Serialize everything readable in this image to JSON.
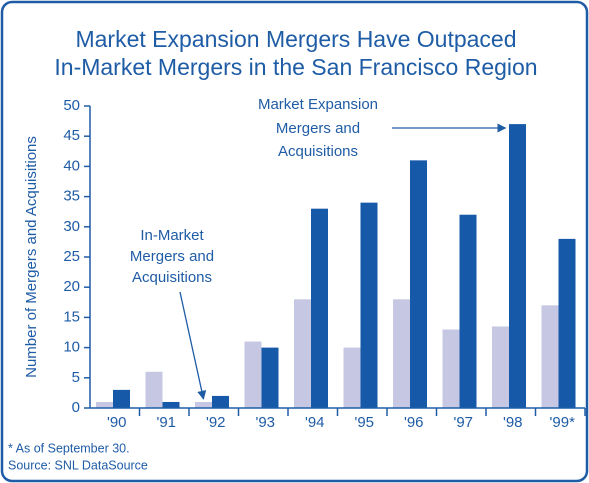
{
  "chart_data": {
    "type": "bar",
    "title": [
      "Market Expansion Mergers Have Outpaced",
      "In-Market Mergers in the San Francisco Region"
    ],
    "y_label": "Number of Mergers and Acquisitions",
    "categories": [
      "'90",
      "'91",
      "'92",
      "'93",
      "'94",
      "'95",
      "'96",
      "'97",
      "'98",
      "'99*"
    ],
    "series": [
      {
        "color": "#c6c8e3",
        "values": [
          1,
          6,
          1,
          11,
          18,
          10,
          18,
          13,
          13.5,
          17
        ]
      },
      {
        "color": "#1659a8",
        "values": [
          3,
          1,
          2,
          10,
          33,
          34,
          41,
          32,
          47,
          28
        ]
      }
    ],
    "ylim": [
      0,
      50
    ],
    "yticks": [
      0,
      5,
      10,
      15,
      20,
      25,
      30,
      35,
      40,
      45,
      50
    ],
    "annotations": [
      {
        "lines": [
          "Market Expansion",
          "Mergers and",
          "Acquisitions"
        ]
      },
      {
        "lines": [
          "In-Market",
          "Mergers and",
          "Acquisitions"
        ]
      }
    ],
    "footnotes": [
      "* As of September 30.",
      "Source: SNL DataSource"
    ]
  }
}
